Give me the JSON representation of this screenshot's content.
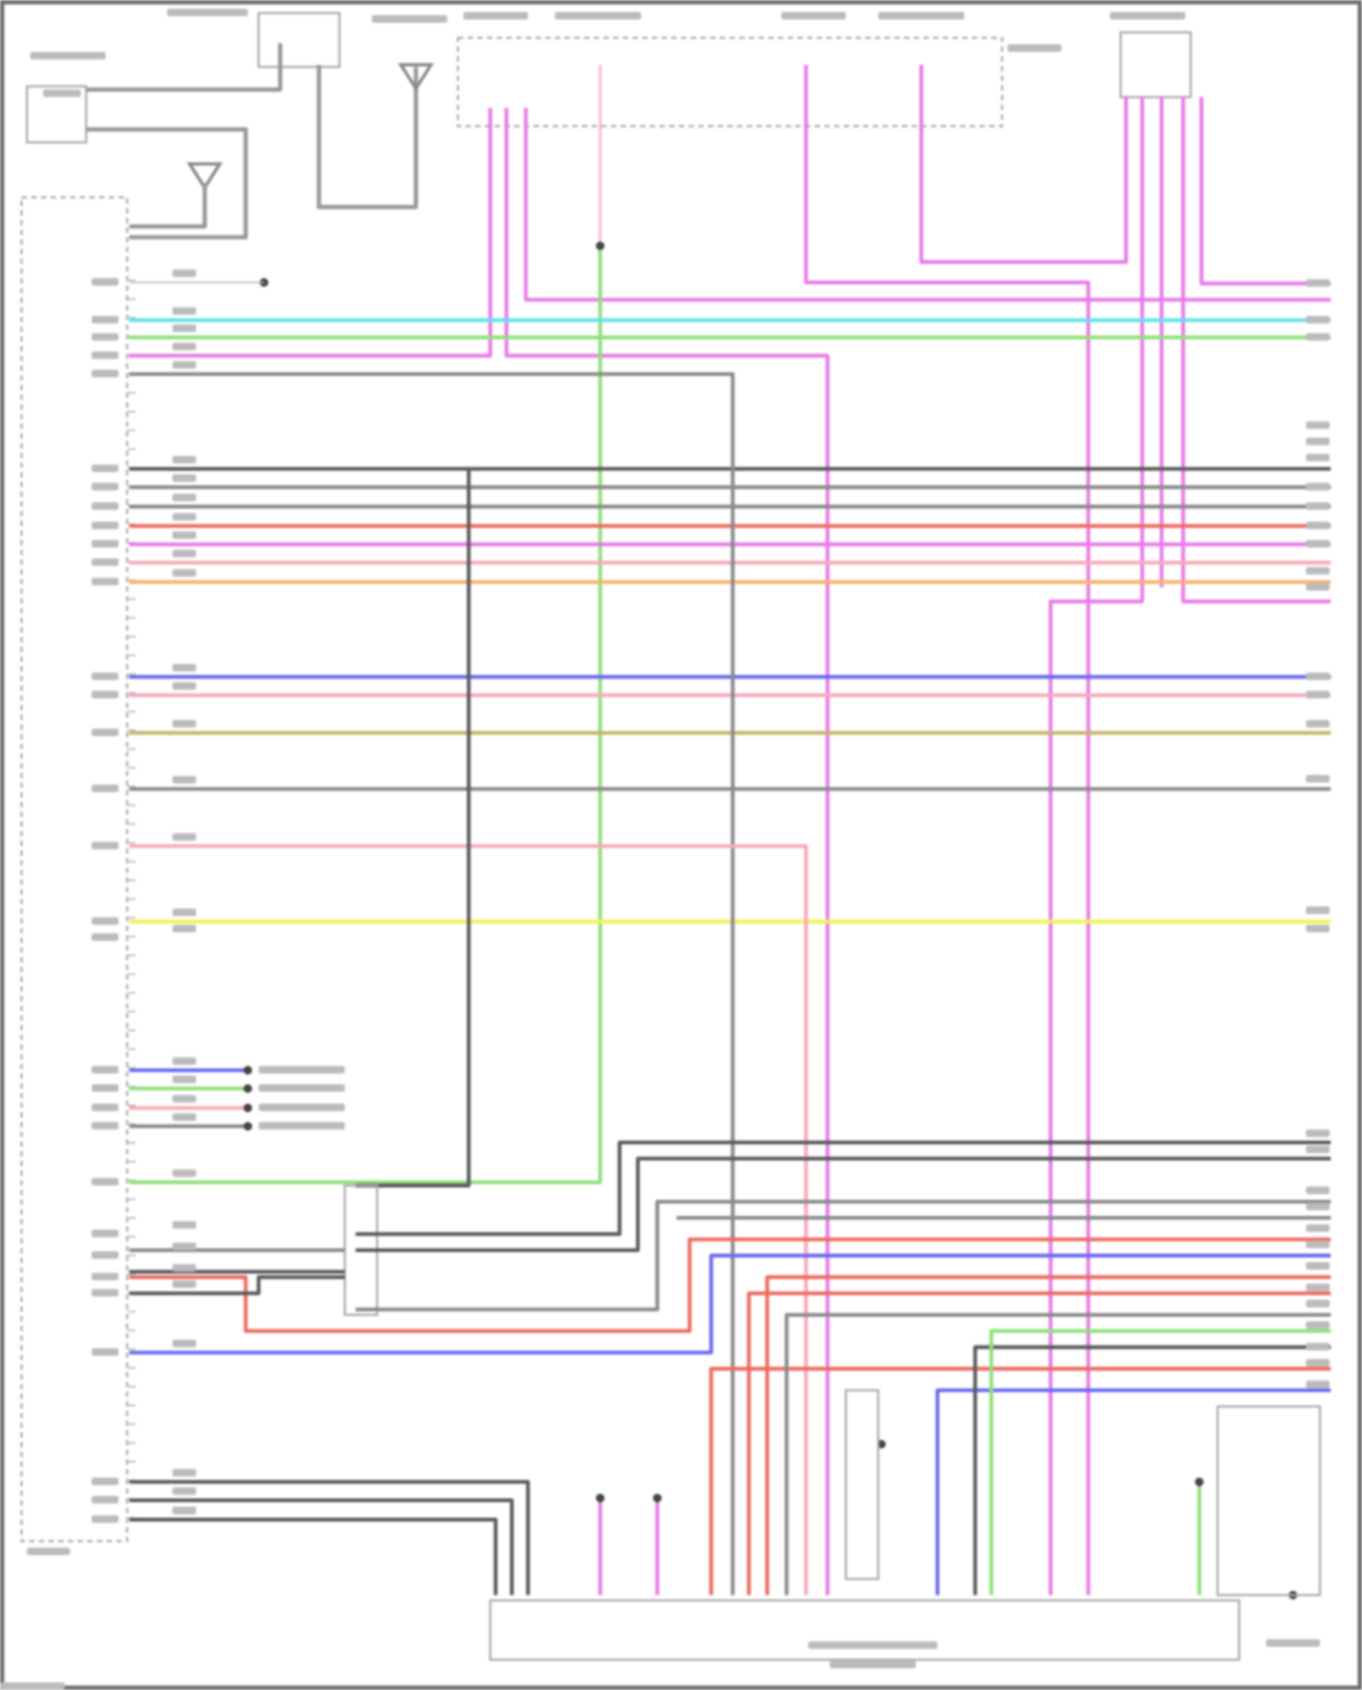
{
  "diagram": {
    "type": "wiring-diagram",
    "text_legible": false,
    "wire_colors": {
      "cyan": "#5fe3ea",
      "green": "#8ee07a",
      "magenta": "#e87ae8",
      "pink": "#f7aab8",
      "gray": "#8a8a8a",
      "dark_gray": "#5a5a5a",
      "red": "#ee6a5f",
      "orange": "#f5b46b",
      "blue": "#6a6aee",
      "tan": "#c8b46a",
      "yellow": "#f2f25a"
    },
    "frame_color": "#6e6e6e"
  }
}
